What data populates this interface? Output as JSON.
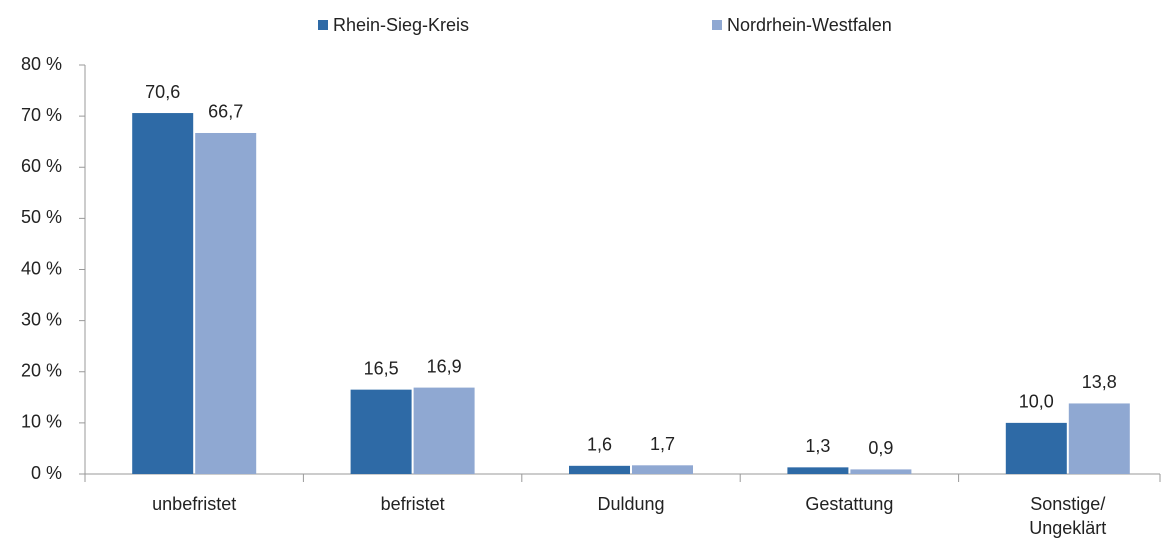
{
  "chart_data": {
    "type": "bar",
    "categories": [
      "unbefristet",
      "befristet",
      "Duldung",
      "Gestattung",
      "Sonstige/\nUngeklärt"
    ],
    "series": [
      {
        "name": "Rhein-Sieg-Kreis",
        "color": "#2e6aa6",
        "values": [
          70.6,
          16.5,
          1.6,
          1.3,
          10.0
        ],
        "value_labels": [
          "70,6",
          "16,5",
          "1,6",
          "1,3",
          "10,0"
        ]
      },
      {
        "name": "Nordrhein-Westfalen",
        "color": "#8fa8d2",
        "values": [
          66.7,
          16.9,
          1.7,
          0.9,
          13.8
        ],
        "value_labels": [
          "66,7",
          "16,9",
          "1,7",
          "0,9",
          "13,8"
        ]
      }
    ],
    "ylim": [
      0,
      80
    ],
    "yticks": [
      {
        "value": 0,
        "label": "0 %"
      },
      {
        "value": 10,
        "label": "10 %"
      },
      {
        "value": 20,
        "label": "20 %"
      },
      {
        "value": 30,
        "label": "30 %"
      },
      {
        "value": 40,
        "label": "40 %"
      },
      {
        "value": 50,
        "label": "50 %"
      },
      {
        "value": 60,
        "label": "60 %"
      },
      {
        "value": 70,
        "label": "70 %"
      },
      {
        "value": 80,
        "label": "80 %"
      }
    ],
    "grid": false,
    "legend": "top"
  }
}
